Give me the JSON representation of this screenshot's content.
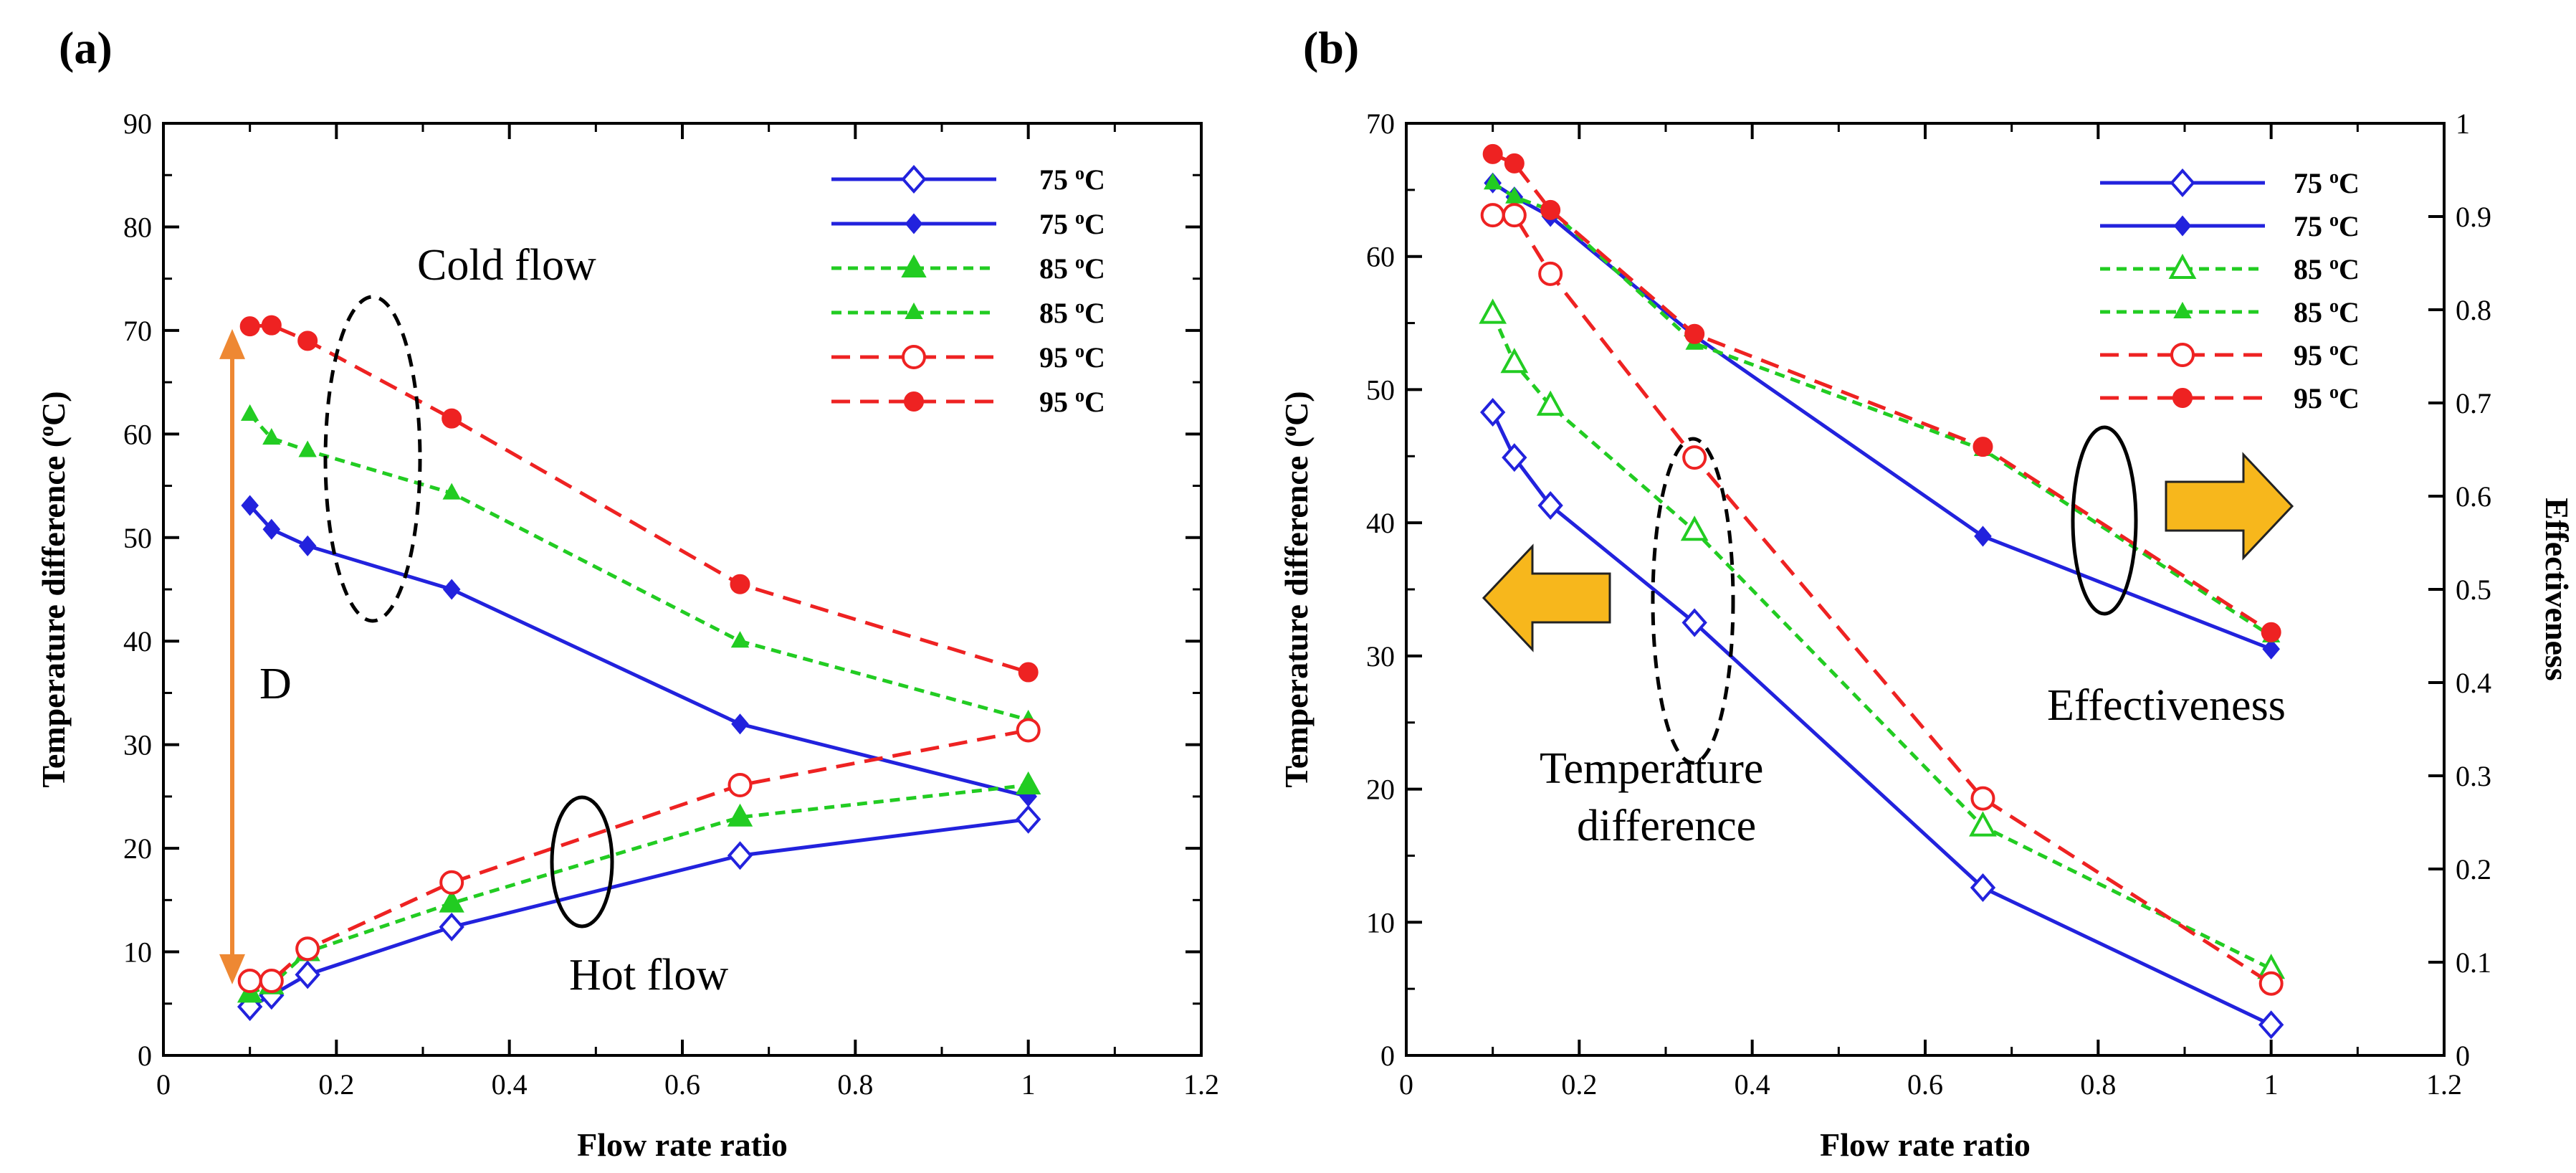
{
  "chart_data": [
    {
      "panel": "(a)",
      "type": "line",
      "xlabel": "Flow rate ratio",
      "ylabel": "Temperature difference (oC)",
      "ylabel_parts": [
        "Temperature difference (",
        "o",
        "C)"
      ],
      "xlim": [
        0,
        1.2
      ],
      "ylim": [
        0,
        90
      ],
      "xticks": [
        0,
        0.2,
        0.4,
        0.6,
        0.8,
        1,
        1.2
      ],
      "yticks": [
        0,
        10,
        20,
        30,
        40,
        50,
        60,
        70,
        80,
        90
      ],
      "xticklabels": [
        "0",
        "0.2",
        "0.4",
        "0.6",
        "0.8",
        "1",
        "1.2"
      ],
      "yticklabels": [
        "0",
        "10",
        "20",
        "30",
        "40",
        "50",
        "60",
        "70",
        "80",
        "90"
      ],
      "legend_position": "top-right",
      "legend_unit": "oC",
      "series": [
        {
          "name": "75 oC",
          "temp": "75",
          "color": "#2222dd",
          "dash": "solid",
          "marker": "diamond-open",
          "group": "Hot flow",
          "x": [
            0.1,
            0.125,
            0.1667,
            0.3333,
            0.6667,
            1.0
          ],
          "y": [
            4.7,
            5.8,
            7.8,
            12.4,
            19.3,
            22.8
          ]
        },
        {
          "name": "75 oC",
          "temp": "75",
          "color": "#2222dd",
          "dash": "solid",
          "marker": "diamond-filled",
          "group": "Cold flow",
          "x": [
            0.1,
            0.125,
            0.1667,
            0.3333,
            0.6667,
            1.0
          ],
          "y": [
            53.1,
            50.8,
            49.2,
            45.0,
            32.0,
            25.0
          ]
        },
        {
          "name": "85 oC",
          "temp": "85",
          "color": "#22cc22",
          "dash": "dotted",
          "marker": "triangle-filled",
          "group": "Hot flow",
          "x": [
            0.1,
            0.125,
            0.1667,
            0.3333,
            0.6667,
            1.0
          ],
          "y": [
            6.0,
            6.8,
            10.0,
            14.7,
            23.0,
            26.1
          ]
        },
        {
          "name": "85 oC",
          "temp": "85",
          "color": "#22cc22",
          "dash": "dotted",
          "marker": "triangle-small",
          "group": "Cold flow",
          "x": [
            0.1,
            0.125,
            0.1667,
            0.3333,
            0.6667,
            1.0
          ],
          "y": [
            61.9,
            59.6,
            58.4,
            54.3,
            40.0,
            32.4
          ]
        },
        {
          "name": "95 oC",
          "temp": "95",
          "color": "#ee2222",
          "dash": "dashed",
          "marker": "circle-open",
          "group": "Hot flow",
          "x": [
            0.1,
            0.125,
            0.1667,
            0.3333,
            0.6667,
            1.0
          ],
          "y": [
            7.2,
            7.2,
            10.3,
            16.7,
            26.1,
            31.4
          ]
        },
        {
          "name": "95 oC",
          "temp": "95",
          "color": "#ee2222",
          "dash": "dashed",
          "marker": "circle-filled",
          "group": "Cold flow",
          "x": [
            0.1,
            0.125,
            0.1667,
            0.3333,
            0.6667,
            1.0
          ],
          "y": [
            70.4,
            70.5,
            69.0,
            61.5,
            45.5,
            37.0
          ]
        }
      ],
      "annotations": [
        "Cold flow",
        "Hot flow",
        "D"
      ]
    },
    {
      "panel": "(b)",
      "type": "line",
      "xlabel": "Flow rate ratio",
      "ylabel": "Temperature difference (oC)",
      "ylabel_parts": [
        "Temperature difference (",
        "o",
        "C)"
      ],
      "y2label": "Effectiveness",
      "xlim": [
        0,
        1.2
      ],
      "ylim": [
        0,
        70
      ],
      "y2lim": [
        0,
        1
      ],
      "xticks": [
        0,
        0.2,
        0.4,
        0.6,
        0.8,
        1,
        1.2
      ],
      "yticks": [
        0,
        10,
        20,
        30,
        40,
        50,
        60,
        70
      ],
      "y2ticks": [
        0,
        0.1,
        0.2,
        0.3,
        0.4,
        0.5,
        0.6,
        0.7,
        0.8,
        0.9,
        1
      ],
      "xticklabels": [
        "0",
        "0.2",
        "0.4",
        "0.6",
        "0.8",
        "1",
        "1.2"
      ],
      "yticklabels": [
        "0",
        "10",
        "20",
        "30",
        "40",
        "50",
        "60",
        "70"
      ],
      "y2ticklabels": [
        "0",
        "0.1",
        "0.2",
        "0.3",
        "0.4",
        "0.5",
        "0.6",
        "0.7",
        "0.8",
        "0.9",
        "1"
      ],
      "legend_position": "top-right",
      "legend_unit": "oC",
      "series": [
        {
          "name": "75 oC",
          "temp": "75",
          "color": "#2222dd",
          "dash": "solid",
          "marker": "diamond-open",
          "axis": "left",
          "group": "Temperature difference",
          "x": [
            0.1,
            0.125,
            0.1667,
            0.3333,
            0.6667,
            1.0
          ],
          "y": [
            48.3,
            44.9,
            41.3,
            32.5,
            12.6,
            2.3
          ]
        },
        {
          "name": "75 oC",
          "temp": "75",
          "color": "#2222dd",
          "dash": "solid",
          "marker": "diamond-filled",
          "axis": "right",
          "group": "Effectiveness",
          "x": [
            0.1,
            0.125,
            0.1667,
            0.3333,
            0.6667,
            1.0
          ],
          "y": [
            0.936,
            0.921,
            0.9,
            0.772,
            0.557,
            0.436
          ]
        },
        {
          "name": "85 oC",
          "temp": "85",
          "color": "#22cc22",
          "dash": "dotted",
          "marker": "triangle-open",
          "axis": "left",
          "group": "Temperature difference",
          "x": [
            0.1,
            0.125,
            0.1667,
            0.3333,
            0.6667,
            1.0
          ],
          "y": [
            55.7,
            52.0,
            48.8,
            39.4,
            17.2,
            6.5
          ]
        },
        {
          "name": "85 oC",
          "temp": "85",
          "color": "#22cc22",
          "dash": "dotted",
          "marker": "triangle-small",
          "axis": "right",
          "group": "Effectiveness",
          "x": [
            0.1,
            0.125,
            0.1667,
            0.3333,
            0.6667,
            1.0
          ],
          "y": [
            0.936,
            0.921,
            0.907,
            0.764,
            0.65,
            0.45
          ]
        },
        {
          "name": "95 oC",
          "temp": "95",
          "color": "#ee2222",
          "dash": "dashed",
          "marker": "circle-open",
          "axis": "left",
          "group": "Temperature difference",
          "x": [
            0.1,
            0.125,
            0.1667,
            0.3333,
            0.6667,
            1.0
          ],
          "y": [
            63.1,
            63.1,
            58.7,
            44.9,
            19.3,
            5.4
          ]
        },
        {
          "name": "95 oC",
          "temp": "95",
          "color": "#ee2222",
          "dash": "dashed",
          "marker": "circle-filled",
          "axis": "right",
          "group": "Effectiveness",
          "x": [
            0.1,
            0.125,
            0.1667,
            0.3333,
            0.6667,
            1.0
          ],
          "y": [
            0.967,
            0.957,
            0.907,
            0.774,
            0.653,
            0.454
          ]
        }
      ],
      "annotations": [
        "Temperature",
        "difference",
        "Effectiveness"
      ]
    }
  ]
}
